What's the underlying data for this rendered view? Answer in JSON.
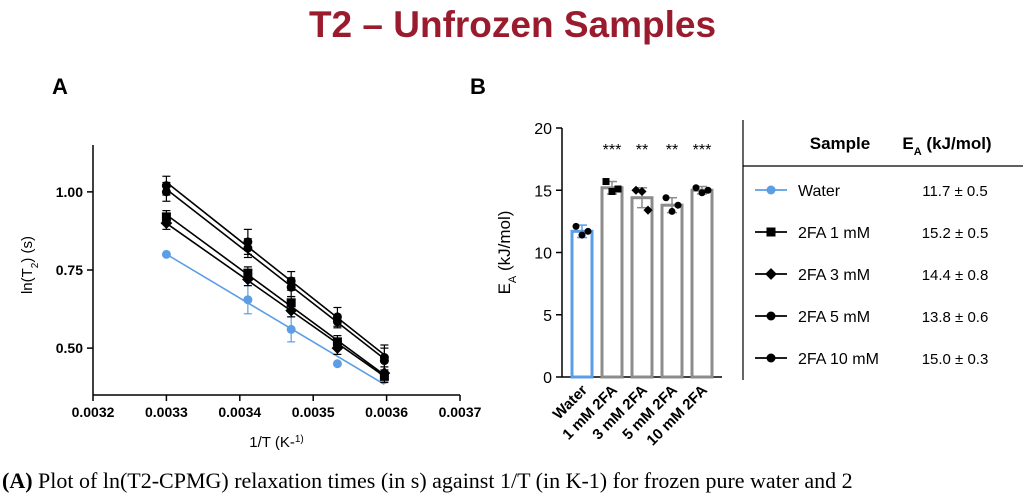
{
  "title": "T2 – Unfrozen Samples",
  "panel_a_label": "A",
  "panel_b_label": "B",
  "caption": {
    "bold": "(A)",
    "text": " Plot of ln(T2-CPMG) relaxation times (in s) against 1/T (in K-1) for frozen pure water and 2"
  },
  "colors": {
    "water": "#5b9ee6",
    "black": "#000000",
    "bar_gray": "#8c8c8c",
    "title": "#9b1b2e"
  },
  "chart_data": [
    {
      "type": "scatter",
      "panel": "A",
      "xlabel": "1/T (K-1)",
      "ylabel": "ln(T2) (s)",
      "xlim": [
        0.0032,
        0.0037
      ],
      "ylim": [
        0.35,
        1.15
      ],
      "xticks": [
        "0.0032",
        "0.0033",
        "0.0034",
        "0.0035",
        "0.0036",
        "0.0037"
      ],
      "yticks": [
        "0.50",
        "0.75",
        "1.00"
      ],
      "x": [
        0.0033,
        0.003411,
        0.00347,
        0.003533,
        0.003597
      ],
      "series": [
        {
          "name": "Water",
          "marker": "circle",
          "color": "#5b9ee6",
          "values": [
            0.8,
            0.655,
            0.56,
            0.45,
            0.4
          ],
          "err": [
            0,
            0.045,
            0.04,
            0,
            0
          ]
        },
        {
          "name": "2FA 1 mM",
          "marker": "square",
          "color": "#000000",
          "values": [
            0.92,
            0.74,
            0.645,
            0.52,
            0.41
          ],
          "err": [
            0.02,
            0.02,
            0.02,
            0.02,
            0.02
          ]
        },
        {
          "name": "2FA 3 mM",
          "marker": "diamond",
          "color": "#000000",
          "values": [
            0.9,
            0.72,
            0.62,
            0.5,
            0.42
          ],
          "err": [
            0.02,
            0.02,
            0.02,
            0.02,
            0.02
          ]
        },
        {
          "name": "2FA 5 mM",
          "marker": "circle",
          "color": "#000000",
          "values": [
            1.0,
            0.82,
            0.695,
            0.585,
            0.46
          ],
          "err": [
            0.03,
            0.03,
            0.03,
            0.02,
            0.04
          ]
        },
        {
          "name": "2FA 10 mM",
          "marker": "circle",
          "color": "#000000",
          "values": [
            1.02,
            0.84,
            0.715,
            0.6,
            0.47
          ],
          "err": [
            0.03,
            0.04,
            0.03,
            0.03,
            0.04
          ]
        }
      ]
    },
    {
      "type": "bar",
      "panel": "B",
      "ylabel": "EA (kJ/mol)",
      "ylim": [
        0,
        20
      ],
      "yticks": [
        "0",
        "5",
        "10",
        "15",
        "20"
      ],
      "categories": [
        "Water",
        "1 mM 2FA",
        "3 mM 2FA",
        "5 mM 2FA",
        "10 mM 2FA"
      ],
      "values": [
        11.7,
        15.2,
        14.4,
        13.8,
        15.0
      ],
      "err": [
        0.5,
        0.5,
        0.8,
        0.6,
        0.3
      ],
      "significance": [
        "",
        "***",
        "**",
        "**",
        "***"
      ],
      "points": [
        {
          "marker": "circle",
          "values": [
            12.1,
            11.4,
            11.7
          ]
        },
        {
          "marker": "square",
          "values": [
            15.7,
            14.9,
            15.1
          ]
        },
        {
          "marker": "diamond",
          "values": [
            15.0,
            14.9,
            13.4
          ]
        },
        {
          "marker": "circle",
          "values": [
            14.4,
            13.3,
            13.8
          ]
        },
        {
          "marker": "circle",
          "values": [
            15.2,
            14.8,
            15.0
          ]
        }
      ]
    }
  ],
  "table": {
    "headers": [
      "Sample",
      "EA (kJ/mol)"
    ],
    "rows": [
      {
        "sample": "Water",
        "value": "11.7 ± 0.5",
        "marker": "circle",
        "color": "#5b9ee6"
      },
      {
        "sample": "2FA 1 mM",
        "value": "15.2 ± 0.5",
        "marker": "square",
        "color": "#000000"
      },
      {
        "sample": "2FA 3 mM",
        "value": "14.4 ± 0.8",
        "marker": "diamond",
        "color": "#000000"
      },
      {
        "sample": "2FA 5 mM",
        "value": "13.8 ± 0.6",
        "marker": "circle",
        "color": "#000000"
      },
      {
        "sample": "2FA 10 mM",
        "value": "15.0 ± 0.3",
        "marker": "circle",
        "color": "#000000"
      }
    ]
  }
}
